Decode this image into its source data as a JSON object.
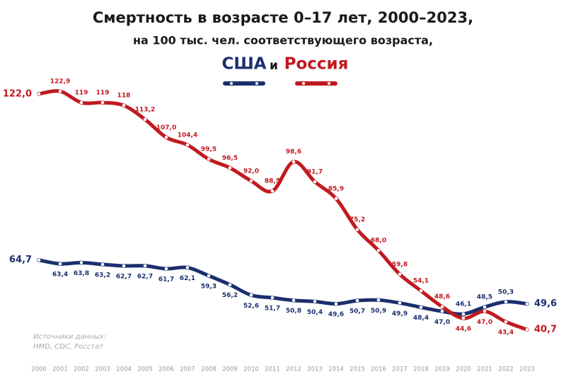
{
  "chart_data": {
    "type": "line",
    "title": "Смертность в возрасте 0–17 лет, 2000–2023,",
    "subtitle": "на 100 тыс. чел. соответствующего возраста,",
    "legend_joiner": "и",
    "source_label": "Источники данных:",
    "source_text": "HMD, CDC, Росстат",
    "categories": [
      "2000",
      "2001",
      "2002",
      "2003",
      "2004",
      "2005",
      "2006",
      "2007",
      "2008",
      "2009",
      "2010",
      "2011",
      "2012",
      "2013",
      "2014",
      "2015",
      "2016",
      "2017",
      "2018",
      "2019",
      "2020",
      "2021",
      "2022",
      "2023"
    ],
    "ylim": [
      30,
      130
    ],
    "series": [
      {
        "name": "США",
        "color": "#1b2f6e",
        "values": [
          64.7,
          63.4,
          63.8,
          63.2,
          62.7,
          62.7,
          61.7,
          62.1,
          59.3,
          56.2,
          52.6,
          51.7,
          50.8,
          50.4,
          49.6,
          50.7,
          50.9,
          49.9,
          48.4,
          47.0,
          46.1,
          48.5,
          50.3,
          49.6
        ],
        "value_labels": [
          "64,7",
          "63,4",
          "63,8",
          "63,2",
          "62,7",
          "62,7",
          "61,7",
          "62,1",
          "59,3",
          "56,2",
          "52,6",
          "51,7",
          "50,8",
          "50,4",
          "49,6",
          "50,7",
          "50,9",
          "49,9",
          "48,4",
          "47,0",
          "46,1",
          "48,5",
          "50,3",
          "49,6"
        ]
      },
      {
        "name": "Россия",
        "color": "#c1191f",
        "values": [
          122.0,
          122.9,
          119,
          119,
          118,
          113.2,
          107.0,
          104.4,
          99.5,
          96.5,
          92.0,
          88.5,
          98.6,
          91.7,
          85.9,
          75.2,
          68.0,
          59.8,
          54.1,
          48.6,
          44.6,
          47.0,
          43.4,
          40.7
        ],
        "value_labels": [
          "122,0",
          "122,9",
          "119",
          "119",
          "118",
          "113,2",
          "107,0",
          "104,4",
          "99,5",
          "96,5",
          "92,0",
          "88,5",
          "98,6",
          "91,7",
          "85,9",
          "75,2",
          "68,0",
          "59,8",
          "54,1",
          "48,6",
          "44,6",
          "47,0",
          "43,4",
          "40,7"
        ]
      }
    ]
  }
}
